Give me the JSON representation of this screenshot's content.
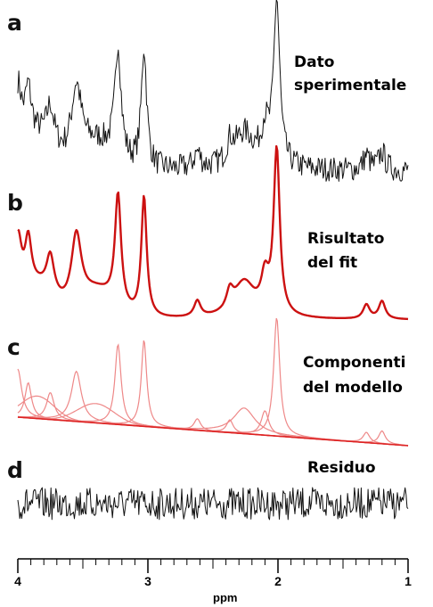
{
  "chart_data": {
    "type": "line",
    "xlabel": "ppm",
    "xlim": [
      4,
      1
    ],
    "x_reversed": true,
    "x_ticks": [
      "4",
      "3",
      "2",
      "1"
    ],
    "x_tick_values": [
      4,
      3,
      2,
      1
    ],
    "colors": {
      "experimental": "#111111",
      "fit": "#cc1111",
      "components": "#ee8888",
      "baseline": "#dd2222",
      "residual": "#111111"
    },
    "panels": [
      {
        "letter": "a",
        "label_lines": [
          "Dato",
          "sperimentale"
        ],
        "series": [
          {
            "role": "experimental"
          }
        ]
      },
      {
        "letter": "b",
        "label_lines": [
          "Risultato",
          "del  fit"
        ],
        "series": [
          {
            "role": "fit"
          }
        ]
      },
      {
        "letter": "c",
        "label_lines": [
          "Componenti",
          "del modello"
        ],
        "series": [
          {
            "role": "components"
          },
          {
            "role": "baseline"
          }
        ]
      },
      {
        "letter": "d",
        "label_lines": [
          "Residuo"
        ],
        "series": [
          {
            "role": "residual"
          }
        ]
      }
    ],
    "peaks": [
      {
        "center": 4.0,
        "width": 0.035,
        "amp": 0.75
      },
      {
        "center": 3.92,
        "width": 0.03,
        "amp": 0.55
      },
      {
        "center": 3.75,
        "width": 0.035,
        "amp": 0.42
      },
      {
        "center": 3.55,
        "width": 0.045,
        "amp": 0.78
      },
      {
        "center": 3.23,
        "width": 0.028,
        "amp": 1.25
      },
      {
        "center": 3.03,
        "width": 0.025,
        "amp": 1.35
      },
      {
        "center": 2.62,
        "width": 0.03,
        "amp": 0.18
      },
      {
        "center": 2.37,
        "width": 0.03,
        "amp": 0.2
      },
      {
        "center": 2.26,
        "width": 0.1,
        "amp": 0.4
      },
      {
        "center": 2.1,
        "width": 0.035,
        "amp": 0.38
      },
      {
        "center": 2.01,
        "width": 0.028,
        "amp": 1.85
      },
      {
        "center": 1.32,
        "width": 0.03,
        "amp": 0.16
      },
      {
        "center": 1.2,
        "width": 0.03,
        "amp": 0.2
      }
    ],
    "broad": [
      {
        "center": 3.85,
        "width": 0.18,
        "amp": 0.35
      },
      {
        "center": 3.4,
        "width": 0.2,
        "amp": 0.3
      }
    ]
  }
}
